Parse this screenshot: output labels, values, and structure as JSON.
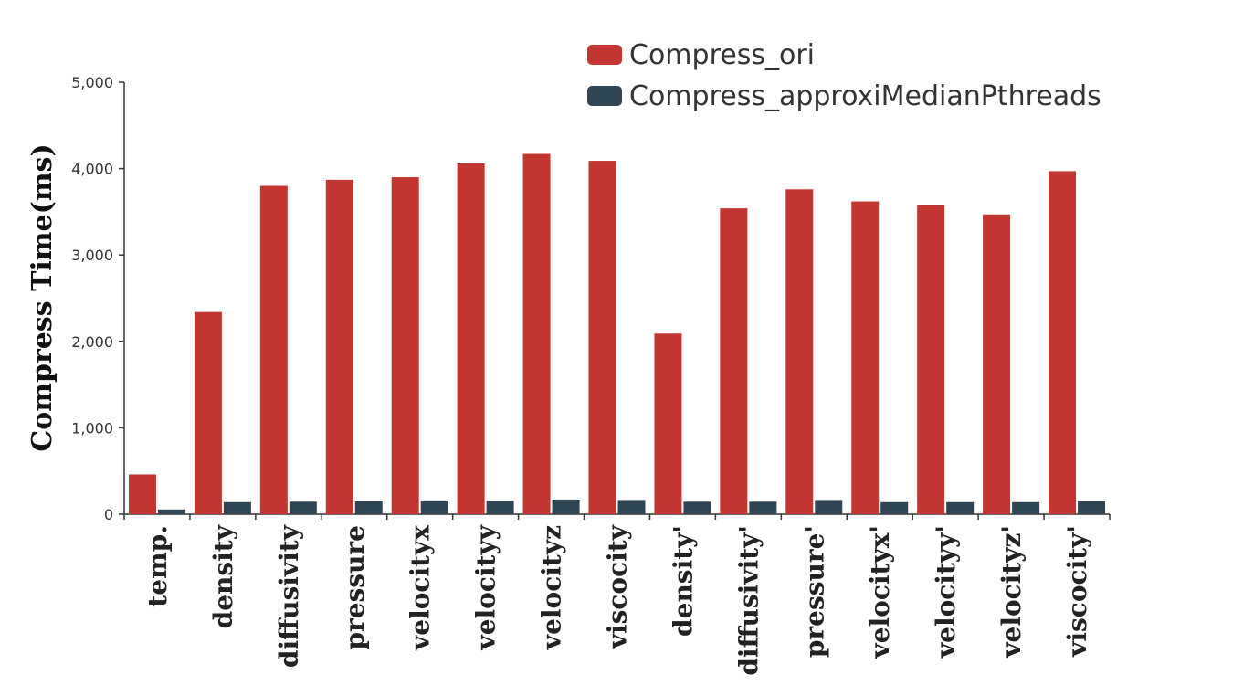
{
  "chart_data": {
    "type": "bar",
    "title": "",
    "xlabel": "",
    "ylabel": "Compress Time(ms)",
    "ylim": [
      0,
      5000
    ],
    "yticks": [
      0,
      1000,
      2000,
      3000,
      4000,
      5000
    ],
    "ytick_labels": [
      "0",
      "1,000",
      "2,000",
      "3,000",
      "4,000",
      "5,000"
    ],
    "categories": [
      "temp.",
      "density",
      "diffusivity",
      "pressure",
      "velocityx",
      "velocityy",
      "velocityz",
      "viscocity",
      "density'",
      "diffusivity'",
      "pressure'",
      "velocityx'",
      "velocityy'",
      "velocityz'",
      "viscocity'"
    ],
    "series": [
      {
        "name": "Compress_ori",
        "color": "#c23531",
        "values": [
          460,
          2340,
          3800,
          3870,
          3900,
          4060,
          4170,
          4090,
          2090,
          3540,
          3760,
          3620,
          3580,
          3470,
          3970
        ]
      },
      {
        "name": "Compress_approxiMedianPthreads",
        "color": "#2f4554",
        "values": [
          55,
          140,
          145,
          150,
          160,
          155,
          170,
          165,
          145,
          145,
          165,
          140,
          140,
          140,
          150
        ]
      }
    ],
    "legend": "top-right",
    "grid": false
  }
}
